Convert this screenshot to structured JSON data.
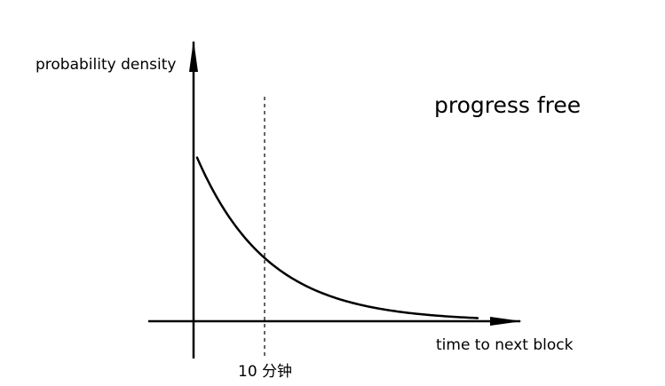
{
  "chart_data": {
    "type": "line",
    "title": "progress free",
    "ylabel": "probability density",
    "xlabel": "time to next block",
    "xlim": [
      0,
      40
    ],
    "ylim": [
      0,
      0.13
    ],
    "grid": false,
    "series": [
      {
        "function": "exponential_pdf",
        "rate": 0.1,
        "x_range": [
          0.5,
          40
        ]
      }
    ],
    "annotations": [
      {
        "type": "vertical-dashed-line",
        "x": 10,
        "label": "10 分钟"
      }
    ],
    "colors": {
      "ink": "#000000",
      "background": "#ffffff"
    }
  }
}
